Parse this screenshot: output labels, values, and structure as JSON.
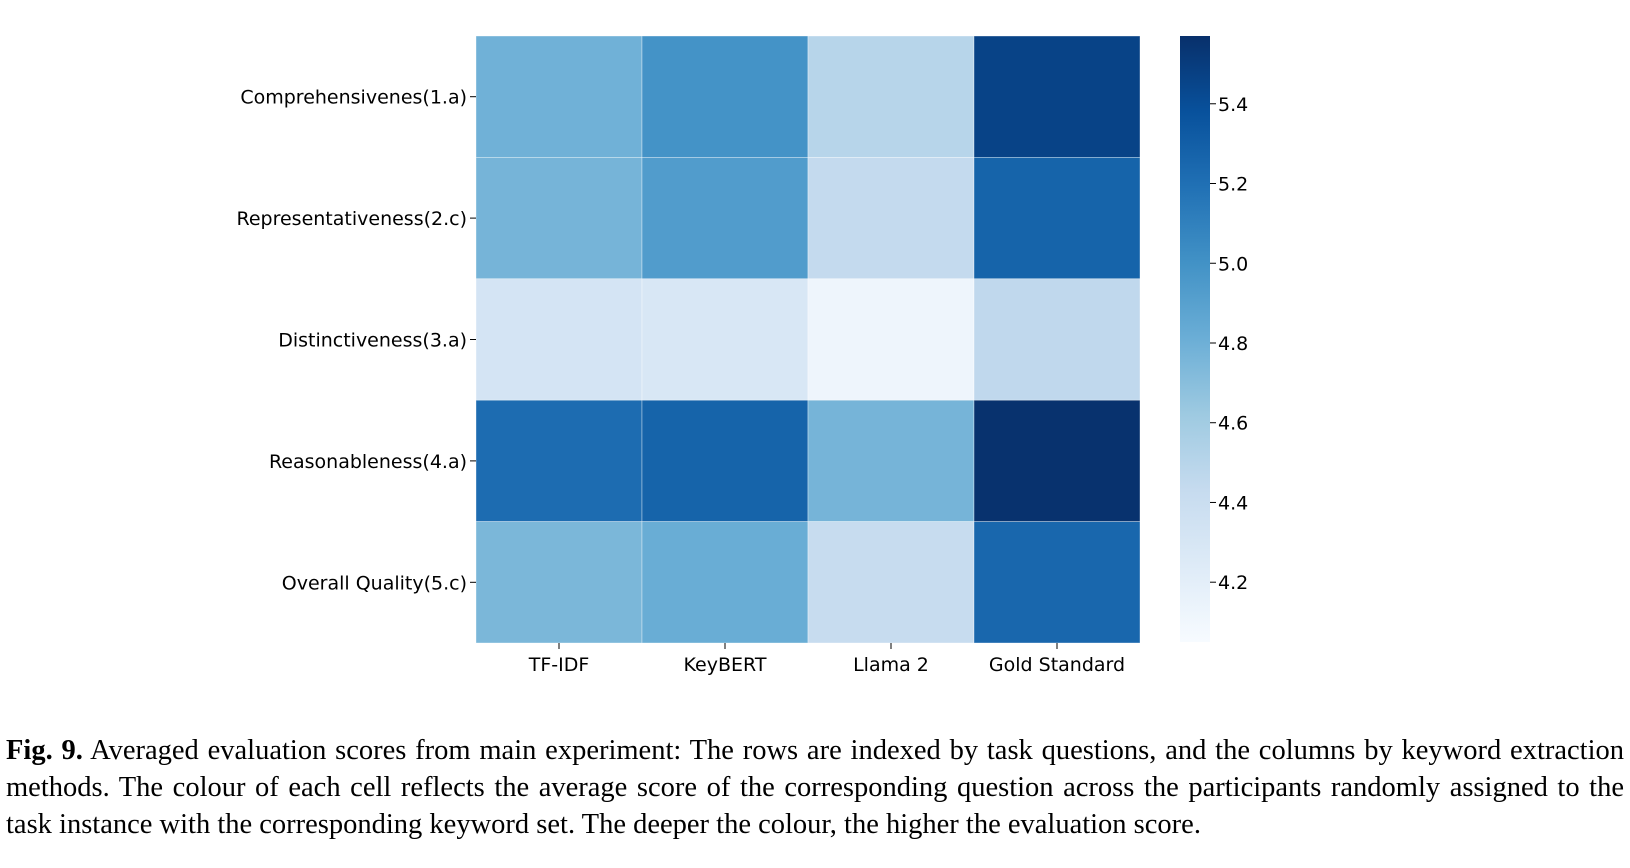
{
  "chart_data": {
    "type": "heatmap",
    "title": "",
    "xlabel": "",
    "ylabel": "",
    "rows": [
      "Comprehensivenes(1.a)",
      "Representativeness(2.c)",
      "Distinctiveness(3.a)",
      "Reasonableness(4.a)",
      "Overall Quality(5.c)"
    ],
    "columns": [
      "TF-IDF",
      "KeyBERT",
      "Llama 2",
      "Gold Standard"
    ],
    "values": [
      [
        4.79,
        4.99,
        4.5,
        5.46
      ],
      [
        4.77,
        4.93,
        4.44,
        5.27
      ],
      [
        4.32,
        4.29,
        4.12,
        4.46
      ],
      [
        5.22,
        5.27,
        4.77,
        5.56
      ],
      [
        4.75,
        4.82,
        4.42,
        5.25
      ]
    ],
    "colormap": "Blues",
    "colorbar": {
      "min": 4.05,
      "max": 5.57,
      "ticks": [
        "4.2",
        "4.4",
        "4.6",
        "4.8",
        "5.0",
        "5.2",
        "5.4"
      ],
      "position": "right"
    },
    "grid": false,
    "legend": "none"
  },
  "caption": {
    "label": "Fig. 9.",
    "text": "Averaged evaluation scores from main experiment: The rows are indexed by task questions, and the columns by keyword extraction methods. The colour of each cell reflects the average score of the corresponding question across the participants randomly assigned to the task instance with the corresponding keyword set. The deeper the colour, the higher the evaluation score."
  }
}
